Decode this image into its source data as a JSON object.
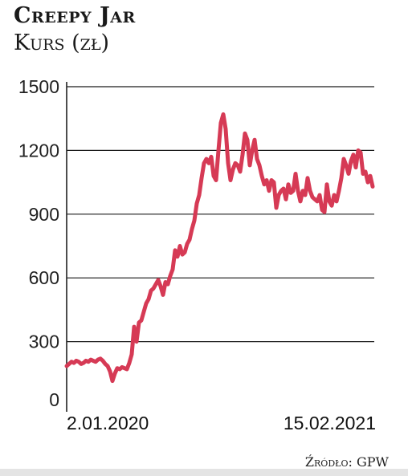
{
  "header": {
    "title": "Creepy Jar",
    "subtitle": "Kurs (zł)"
  },
  "source": "Źródło: GPW",
  "colors": {
    "line": "#d63a55",
    "grid": "#1a1a1a",
    "axis": "#222222"
  },
  "chart_data": {
    "type": "line",
    "title": "Creepy Jar",
    "ylabel": "Kurs (zł)",
    "ylim": [
      0,
      1500
    ],
    "yticks": [
      "0",
      "300",
      "600",
      "900",
      "1200",
      "1500"
    ],
    "xticks": [
      "2.01.2020",
      "15.02.2021"
    ],
    "grid": true,
    "series": [
      {
        "values": [
          185,
          195,
          205,
          200,
          210,
          205,
          195,
          200,
          210,
          205,
          215,
          210,
          205,
          215,
          220,
          210,
          195,
          185,
          160,
          115,
          150,
          175,
          170,
          180,
          175,
          170,
          200,
          240,
          370,
          300,
          390,
          400,
          440,
          480,
          500,
          540,
          550,
          570,
          590,
          560,
          520,
          580,
          570,
          610,
          640,
          730,
          700,
          750,
          710,
          720,
          760,
          780,
          830,
          870,
          950,
          990,
          1070,
          1140,
          1160,
          1140,
          1170,
          1080,
          1060,
          1200,
          1330,
          1370,
          1300,
          1140,
          1060,
          1110,
          1140,
          1130,
          1100,
          1180,
          1280,
          1250,
          1130,
          1200,
          1250,
          1160,
          1130,
          1080,
          1040,
          1060,
          1010,
          1060,
          1050,
          930,
          990,
          1010,
          1020,
          970,
          1040,
          1000,
          1010,
          1090,
          1010,
          960,
          1010,
          990,
          1070,
          1010,
          980,
          970,
          960,
          990,
          920,
          910,
          1040,
          960,
          940,
          990,
          960,
          1010,
          1070,
          1160,
          1130,
          1090,
          1150,
          1180,
          1120,
          1200,
          1190,
          1090,
          1100,
          1050,
          1080,
          1030
        ]
      }
    ]
  }
}
